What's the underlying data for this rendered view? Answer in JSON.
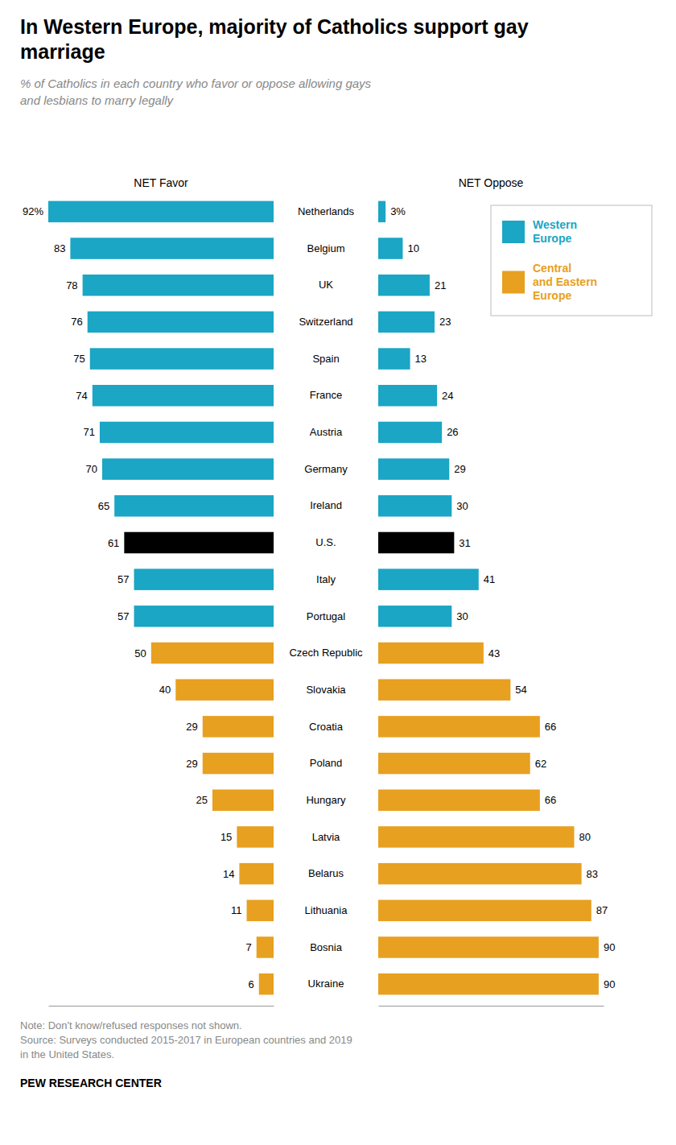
{
  "chart_data": {
    "type": "bar",
    "orientation": "horizontal",
    "title": "In Western Europe, majority of Catholics support gay\nmarriage",
    "subtitle": "% of Catholics in each country who favor or oppose allowing gays\nand lesbians to marry legally",
    "categories": [
      "Netherlands",
      "Belgium",
      "UK",
      "Switzerland",
      "Spain",
      "France",
      "Austria",
      "Germany",
      "Ireland",
      "U.S.",
      "Italy",
      "Portugal",
      "Czech Republic",
      "Slovakia",
      "Croatia",
      "Poland",
      "Hungary",
      "Latvia",
      "Belarus",
      "Lithuania",
      "Bosnia",
      "Ukraine"
    ],
    "series": [
      {
        "name": "NET Favor",
        "values": [
          92,
          83,
          78,
          76,
          75,
          74,
          71,
          70,
          65,
          61,
          57,
          57,
          50,
          40,
          29,
          29,
          25,
          15,
          14,
          11,
          7,
          6
        ],
        "value_labels": [
          "92%",
          "83",
          "78",
          "76",
          "75",
          "74",
          "71",
          "70",
          "65",
          "61",
          "57",
          "57",
          "50",
          "40",
          "29",
          "29",
          "25",
          "15",
          "14",
          "11",
          "7",
          "6"
        ],
        "colors": [
          "#1aA6C4",
          "#1aA6C4",
          "#1aA6C4",
          "#1aA6C4",
          "#1aA6C4",
          "#1aA6C4",
          "#1aA6C4",
          "#1aA6C4",
          "#1aA6C4",
          "#000000",
          "#1aA6C4",
          "#1aA6C4",
          "#E8A020",
          "#E8A020",
          "#E8A020",
          "#E8A020",
          "#E8A020",
          "#E8A020",
          "#E8A020",
          "#E8A020",
          "#E8A020",
          "#E8A020"
        ]
      },
      {
        "name": "NET Oppose",
        "values": [
          3,
          10,
          21,
          23,
          13,
          24,
          26,
          29,
          30,
          31,
          41,
          30,
          43,
          54,
          66,
          62,
          66,
          80,
          83,
          87,
          90,
          90
        ],
        "value_labels": [
          "3%",
          "10",
          "21",
          "23",
          "13",
          "24",
          "26",
          "29",
          "30",
          "31",
          "41",
          "30",
          "43",
          "54",
          "66",
          "62",
          "66",
          "80",
          "83",
          "87",
          "90",
          "90"
        ],
        "colors": [
          "#1aA6C4",
          "#1aA6C4",
          "#1aA6C4",
          "#1aA6C4",
          "#1aA6C4",
          "#1aA6C4",
          "#1aA6C4",
          "#1aA6C4",
          "#1aA6C4",
          "#000000",
          "#1aA6C4",
          "#1aA6C4",
          "#E8A020",
          "#E8A020",
          "#E8A020",
          "#E8A020",
          "#E8A020",
          "#E8A020",
          "#E8A020",
          "#E8A020",
          "#E8A020",
          "#E8A020"
        ]
      }
    ],
    "legend_entries": [
      {
        "name": "Western\nEurope",
        "color": "#1aA6C4"
      },
      {
        "name": "Central\nand Eastern\nEurope",
        "color": "#E8A020"
      }
    ],
    "xlim": [
      0,
      92
    ],
    "data_labels": true,
    "tick_labels": "y",
    "note": "Note: Don't know/refused responses not shown.\nSource: Surveys conducted 2015-2017 in European countries and 2019\nin the United States.",
    "footer": "PEW RESEARCH CENTER"
  }
}
